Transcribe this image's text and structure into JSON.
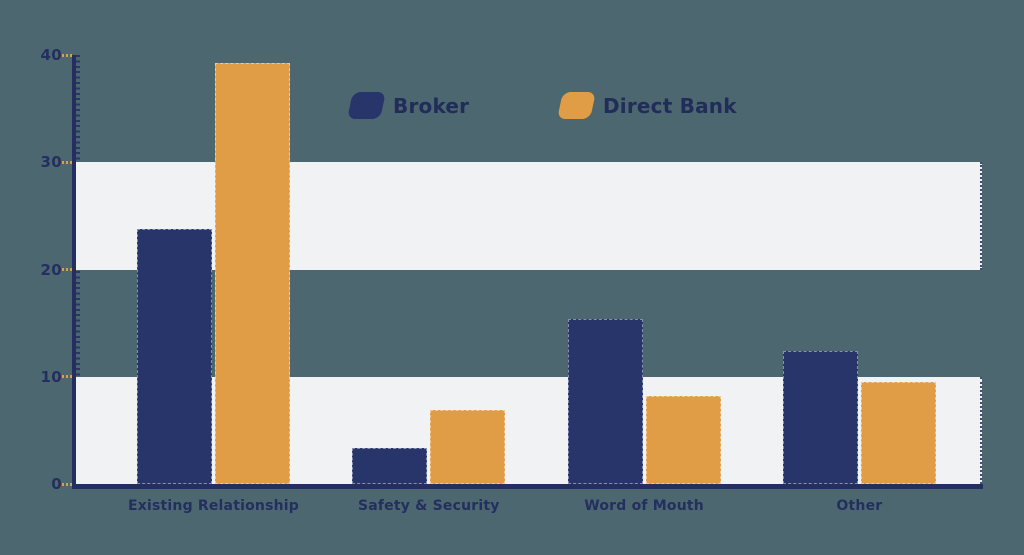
{
  "chart_data": {
    "type": "bar",
    "title": "",
    "xlabel": "",
    "ylabel": "",
    "categories": [
      "Existing Relationship",
      "Safety & Security",
      "Word of Mouth",
      "Other"
    ],
    "series": [
      {
        "name": "Broker",
        "color": "#28356b",
        "values": [
          23.8,
          3.4,
          15.4,
          12.4
        ]
      },
      {
        "name": "Direct Bank",
        "color": "#e09d45",
        "values": [
          39.3,
          6.9,
          8.2,
          9.5
        ]
      }
    ],
    "ylim": [
      0,
      40
    ],
    "yticks": [
      0,
      10,
      20,
      30,
      40
    ],
    "legend_position": "top-center",
    "grid": "alternating horizontal background bands, no gridlines",
    "band_ranges": [
      [
        0,
        10
      ],
      [
        20,
        30
      ]
    ],
    "colors": {
      "background": "#4c6770",
      "band": "#f1f2f3",
      "axis": "#242f5f",
      "text": "#232f5e",
      "tick_dash": "#e09d45",
      "broker": "#28356b",
      "direct_bank": "#e09d45"
    }
  }
}
